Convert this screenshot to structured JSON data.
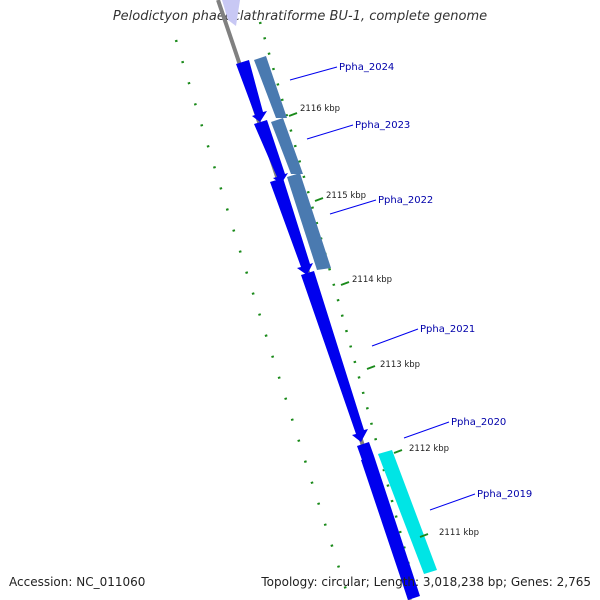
{
  "title": "Pelodictyon phaeoclathratiforme BU-1, complete genome",
  "footer": {
    "accession": "Accession: NC_011060",
    "summary": "Topology: circular; Length: 3,018,238 bp; Genes: 2,765"
  },
  "colors": {
    "forward_gene": "#0000ee",
    "reverse_gene_a": "#4a7ab0",
    "reverse_gene_b": "#00e5e5",
    "backbone": "#808080",
    "dots": "#1a8a1a",
    "label": "#0000aa"
  },
  "genes": [
    {
      "label": "Ppha_2024"
    },
    {
      "label": "Ppha_2023"
    },
    {
      "label": "Ppha_2022"
    },
    {
      "label": "Ppha_2021"
    },
    {
      "label": "Ppha_2020"
    },
    {
      "label": "Ppha_2019"
    }
  ],
  "ticks": [
    {
      "label": "2116 kbp"
    },
    {
      "label": "2115 kbp"
    },
    {
      "label": "2114 kbp"
    },
    {
      "label": "2113 kbp"
    },
    {
      "label": "2112 kbp"
    },
    {
      "label": "2111 kbp"
    }
  ]
}
